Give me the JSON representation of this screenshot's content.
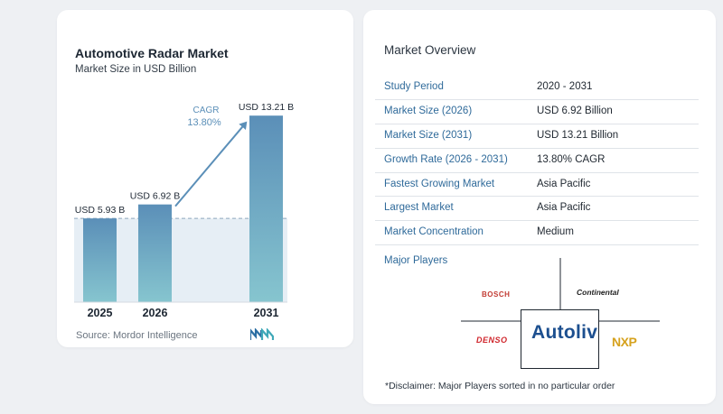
{
  "chart_data": {
    "type": "bar",
    "title": "Automotive Radar Market",
    "subtitle": "Market Size in USD Billion",
    "categories": [
      "2025",
      "2026",
      "2031"
    ],
    "values": [
      5.93,
      6.92,
      13.21
    ],
    "value_labels": [
      "USD 5.93 B",
      "USD 6.92 B",
      "USD 13.21 B"
    ],
    "cagr_label": "CAGR",
    "cagr_value": "13.80%",
    "ylim": [
      0,
      14.5
    ],
    "grid": false,
    "colors": {
      "bar_top": "#5b8fb8",
      "bar_bottom": "#86c5cf",
      "band": "#e6eef5",
      "arrow": "#5b8fb8",
      "cagr_text": "#5b8fb8"
    }
  },
  "source": "Source: Mordor Intelligence",
  "brand_icon": "mordor-intelligence-logo-icon",
  "market_overview": {
    "title": "Market Overview",
    "rows": [
      {
        "key": "Study Period",
        "value": "2020 - 2031"
      },
      {
        "key": "Market Size (2026)",
        "value": "USD 6.92 Billion"
      },
      {
        "key": "Market Size (2031)",
        "value": "USD 13.21 Billion"
      },
      {
        "key": "Growth Rate (2026 - 2031)",
        "value": "13.80% CAGR"
      },
      {
        "key": "Fastest Growing Market",
        "value": "Asia Pacific"
      },
      {
        "key": "Largest Market",
        "value": "Asia Pacific"
      },
      {
        "key": "Market Concentration",
        "value": "Medium"
      }
    ]
  },
  "major_players": {
    "title": "Major Players",
    "logos": {
      "bosch": "BOSCH",
      "continental": "Continental",
      "denso": "DENSO",
      "autoliv": "Autoliv",
      "nxp": "NXP"
    }
  },
  "disclaimer": "*Disclaimer: Major Players sorted in no particular order"
}
